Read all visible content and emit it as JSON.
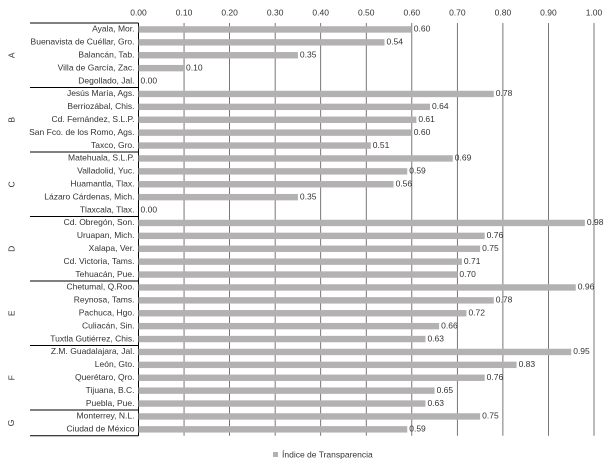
{
  "chart_data": {
    "type": "bar",
    "orientation": "horizontal",
    "legend_label": "Índice de Transparencia",
    "color": "#b3b1b1",
    "grid": true,
    "xlim": [
      0,
      1
    ],
    "xticks": [
      {
        "value": 0,
        "label": "0.00"
      },
      {
        "value": 0.1,
        "label": "0.10"
      },
      {
        "value": 0.2,
        "label": "0.20"
      },
      {
        "value": 0.3,
        "label": "0.30"
      },
      {
        "value": 0.4,
        "label": "0.40"
      },
      {
        "value": 0.5,
        "label": "0.50"
      },
      {
        "value": 0.6,
        "label": "0.60"
      },
      {
        "value": 0.7,
        "label": "0.70"
      },
      {
        "value": 0.8,
        "label": "0.80"
      },
      {
        "value": 0.9,
        "label": "0.90"
      },
      {
        "value": 1,
        "label": "1.00"
      }
    ],
    "groups": [
      {
        "name": "A",
        "categories": [
          "Ayala, Mor.",
          "Buenavista de Cuéllar, Gro.",
          "Balancán, Tab.",
          "Villa de García, Zac.",
          "Degollado, Jal."
        ],
        "values": [
          0.6,
          0.54,
          0.35,
          0.1,
          0
        ],
        "value_labels": [
          "0.60",
          "0.54",
          "0.35",
          "0.10",
          "0.00"
        ]
      },
      {
        "name": "B",
        "categories": [
          "Jesús María, Ags.",
          "Berriozábal, Chis.",
          "Cd. Fernández, S.L.P.",
          "San Fco. de los Romo, Ags.",
          "Taxco, Gro."
        ],
        "values": [
          0.78,
          0.64,
          0.61,
          0.6,
          0.51
        ],
        "value_labels": [
          "0.78",
          "0.64",
          "0.61",
          "0.60",
          "0.51"
        ]
      },
      {
        "name": "C",
        "categories": [
          "Matehuala, S.L.P.",
          "Valladolid, Yuc.",
          "Huamantla, Tlax.",
          "Lázaro Cárdenas, Mich.",
          "Tlaxcala, Tlax."
        ],
        "values": [
          0.69,
          0.59,
          0.56,
          0.35,
          0
        ],
        "value_labels": [
          "0.69",
          "0.59",
          "0.56",
          "0.35",
          "0.00"
        ]
      },
      {
        "name": "D",
        "categories": [
          "Cd. Obregón, Son.",
          "Uruapan, Mich.",
          "Xalapa, Ver.",
          "Cd. Victoria, Tams.",
          "Tehuacán, Pue."
        ],
        "values": [
          0.98,
          0.76,
          0.75,
          0.71,
          0.7
        ],
        "value_labels": [
          "0.98",
          "0.76",
          "0.75",
          "0.71",
          "0.70"
        ]
      },
      {
        "name": "E",
        "categories": [
          "Chetumal, Q.Roo.",
          "Reynosa, Tams.",
          "Pachuca, Hgo.",
          "Culiacán, Sin.",
          "Tuxtla Gutiérrez, Chis."
        ],
        "values": [
          0.96,
          0.78,
          0.72,
          0.66,
          0.63
        ],
        "value_labels": [
          "0.96",
          "0.78",
          "0.72",
          "0.66",
          "0.63"
        ]
      },
      {
        "name": "F",
        "categories": [
          "Z.M. Guadalajara, Jal.",
          "León, Gto.",
          "Querétaro, Qro.",
          "Tijuana, B.C.",
          "Puebla, Pue."
        ],
        "values": [
          0.95,
          0.83,
          0.76,
          0.65,
          0.63
        ],
        "value_labels": [
          "0.95",
          "0.83",
          "0.76",
          "0.65",
          "0.63"
        ]
      },
      {
        "name": "G",
        "categories": [
          "Monterrey, N.L.",
          "Ciudad de México"
        ],
        "values": [
          0.75,
          0.59
        ],
        "value_labels": [
          "0.75",
          "0.59"
        ]
      }
    ]
  }
}
